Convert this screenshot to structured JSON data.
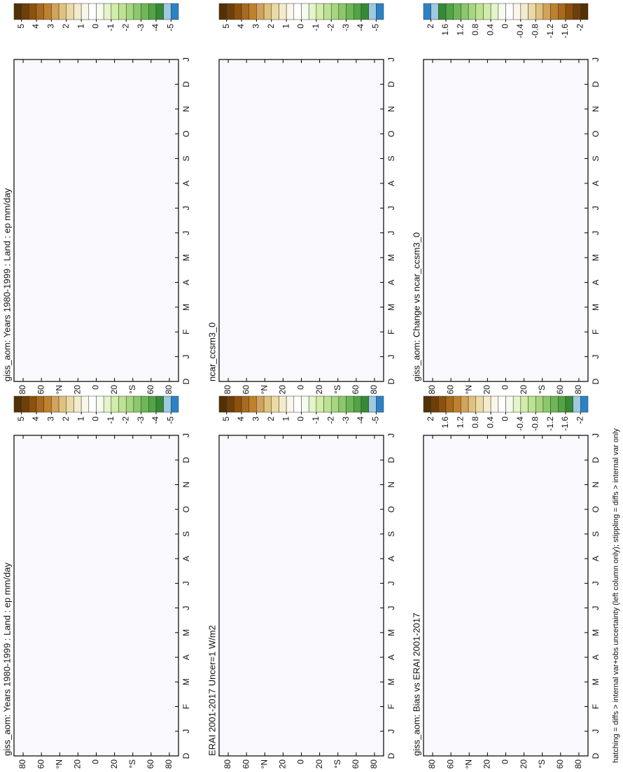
{
  "chart_data": [
    {
      "type": "heatmap",
      "title": "giss_aom: Years 1980-1999 : Land : ep mm/day",
      "categories": [
        "D",
        "J",
        "F",
        "M",
        "A",
        "M",
        "J",
        "J",
        "A",
        "S",
        "O",
        "N",
        "D",
        "J"
      ],
      "ylim": [
        -90,
        90
      ],
      "yticks": [
        80,
        60,
        {
          "value": 40,
          "label": "°N"
        },
        20,
        0,
        {
          "value": -20,
          "label": "20"
        },
        {
          "value": -40,
          "label": "°S"
        },
        {
          "value": -60,
          "label": "60"
        },
        {
          "value": -80,
          "label": "80"
        }
      ],
      "colorbar": {
        "ticks": [
          5,
          4,
          3,
          2,
          1,
          0,
          -1,
          -2,
          -3,
          -4,
          -5
        ],
        "colors": [
          "#543005",
          "#6e3f0a",
          "#8c510a",
          "#a86a1f",
          "#bf812d",
          "#d2a35c",
          "#dfc27d",
          "#eadaa6",
          "#f3ebcc",
          "#faf6e9",
          "#ffffff",
          "#f7fbef",
          "#e5f4c9",
          "#d2ecaa",
          "#bde293",
          "#a6d67f",
          "#8cc86b",
          "#6fb657",
          "#52a444",
          "#348a36",
          "#9ecae1",
          "#2b83c6"
        ]
      }
    },
    {
      "type": "heatmap",
      "title": "giss_aom: Years 1980-1999 : Land : ep mm/day",
      "categories": [
        "D",
        "J",
        "F",
        "M",
        "A",
        "M",
        "J",
        "J",
        "A",
        "S",
        "O",
        "N",
        "D",
        "J"
      ],
      "ylim": [
        -90,
        90
      ],
      "yticks": [
        80,
        60,
        {
          "value": 40,
          "label": "°N"
        },
        20,
        0,
        {
          "value": -20,
          "label": "20"
        },
        {
          "value": -40,
          "label": "°S"
        },
        {
          "value": -60,
          "label": "60"
        },
        {
          "value": -80,
          "label": "80"
        }
      ],
      "colorbar": {
        "ticks": [
          5,
          4,
          3,
          2,
          1,
          0,
          -1,
          -2,
          -3,
          -4,
          -5
        ],
        "colors": [
          "#543005",
          "#6e3f0a",
          "#8c510a",
          "#a86a1f",
          "#bf812d",
          "#d2a35c",
          "#dfc27d",
          "#eadaa6",
          "#f3ebcc",
          "#faf6e9",
          "#ffffff",
          "#f7fbef",
          "#e5f4c9",
          "#d2ecaa",
          "#bde293",
          "#a6d67f",
          "#8cc86b",
          "#6fb657",
          "#52a444",
          "#348a36",
          "#9ecae1",
          "#2b83c6"
        ]
      }
    },
    {
      "type": "heatmap",
      "title": "ERAI 2001-2017 Uncer=1 W/m2",
      "categories": [
        "D",
        "J",
        "F",
        "M",
        "A",
        "M",
        "J",
        "J",
        "A",
        "S",
        "O",
        "N",
        "D",
        "J"
      ],
      "ylim": [
        -90,
        90
      ],
      "yticks": [
        80,
        60,
        {
          "value": 40,
          "label": "°N"
        },
        20,
        0,
        {
          "value": -20,
          "label": "20"
        },
        {
          "value": -40,
          "label": "°S"
        },
        {
          "value": -60,
          "label": "60"
        },
        {
          "value": -80,
          "label": "80"
        }
      ],
      "colorbar": {
        "ticks": [
          5,
          4,
          3,
          2,
          1,
          0,
          -1,
          -2,
          -3,
          -4,
          -5
        ],
        "colors": [
          "#543005",
          "#6e3f0a",
          "#8c510a",
          "#a86a1f",
          "#bf812d",
          "#d2a35c",
          "#dfc27d",
          "#eadaa6",
          "#f3ebcc",
          "#faf6e9",
          "#ffffff",
          "#f7fbef",
          "#e5f4c9",
          "#d2ecaa",
          "#bde293",
          "#a6d67f",
          "#8cc86b",
          "#6fb657",
          "#52a444",
          "#348a36",
          "#9ecae1",
          "#2b83c6"
        ]
      }
    },
    {
      "type": "heatmap",
      "title": "ncar_ccsm3_0",
      "categories": [
        "D",
        "J",
        "F",
        "M",
        "A",
        "M",
        "J",
        "J",
        "A",
        "S",
        "O",
        "N",
        "D",
        "J"
      ],
      "ylim": [
        -90,
        90
      ],
      "yticks": [
        80,
        60,
        {
          "value": 40,
          "label": "°N"
        },
        20,
        0,
        {
          "value": -20,
          "label": "20"
        },
        {
          "value": -40,
          "label": "°S"
        },
        {
          "value": -60,
          "label": "60"
        },
        {
          "value": -80,
          "label": "80"
        }
      ],
      "colorbar": {
        "ticks": [
          5,
          4,
          3,
          2,
          1,
          0,
          -1,
          -2,
          -3,
          -4,
          -5
        ],
        "colors": [
          "#543005",
          "#6e3f0a",
          "#8c510a",
          "#a86a1f",
          "#bf812d",
          "#d2a35c",
          "#dfc27d",
          "#eadaa6",
          "#f3ebcc",
          "#faf6e9",
          "#ffffff",
          "#f7fbef",
          "#e5f4c9",
          "#d2ecaa",
          "#bde293",
          "#a6d67f",
          "#8cc86b",
          "#6fb657",
          "#52a444",
          "#348a36",
          "#9ecae1",
          "#2b83c6"
        ]
      }
    },
    {
      "type": "heatmap",
      "title": "giss_aom: Bias vs ERAI 2001-2017",
      "categories": [
        "D",
        "J",
        "F",
        "M",
        "A",
        "M",
        "J",
        "J",
        "A",
        "S",
        "O",
        "N",
        "D",
        "J"
      ],
      "ylim": [
        -90,
        90
      ],
      "yticks": [
        80,
        60,
        {
          "value": 40,
          "label": "°N"
        },
        20,
        0,
        {
          "value": -20,
          "label": "20"
        },
        {
          "value": -40,
          "label": "°S"
        },
        {
          "value": -60,
          "label": "60"
        },
        {
          "value": -80,
          "label": "80"
        }
      ],
      "colorbar": {
        "ticks": [
          2,
          1.6,
          1.2,
          0.8,
          0.4,
          0,
          -0.4,
          -0.8,
          -1.2,
          -1.6,
          -2
        ],
        "colors": [
          "#543005",
          "#6e3f0a",
          "#8c510a",
          "#a86a1f",
          "#bf812d",
          "#d2a35c",
          "#dfc27d",
          "#eadaa6",
          "#f3ebcc",
          "#faf6e9",
          "#ffffff",
          "#f7fbef",
          "#e5f4c9",
          "#d2ecaa",
          "#bde293",
          "#a6d67f",
          "#8cc86b",
          "#6fb657",
          "#52a444",
          "#348a36",
          "#9ecae1",
          "#2b83c6"
        ]
      }
    },
    {
      "type": "heatmap",
      "title": "giss_aom: Change vs ncar_ccsm3_0",
      "categories": [
        "D",
        "J",
        "F",
        "M",
        "A",
        "M",
        "J",
        "J",
        "A",
        "S",
        "O",
        "N",
        "D",
        "J"
      ],
      "ylim": [
        -90,
        90
      ],
      "yticks": [
        80,
        60,
        {
          "value": 40,
          "label": "°N"
        },
        20,
        0,
        {
          "value": -20,
          "label": "20"
        },
        {
          "value": -40,
          "label": "°S"
        },
        {
          "value": -60,
          "label": "60"
        },
        {
          "value": -80,
          "label": "80"
        }
      ],
      "colorbar": {
        "ticks": [
          2,
          1.6,
          1.2,
          0.8,
          0.4,
          0,
          -0.4,
          -0.8,
          -1.2,
          -1.6,
          -2
        ],
        "colors": [
          "#2b83c6",
          "#9ecae1",
          "#348a36",
          "#52a444",
          "#6fb657",
          "#8cc86b",
          "#a6d67f",
          "#bde293",
          "#d2ecaa",
          "#e5f4c9",
          "#f7fbef",
          "#ffffff",
          "#faf6e9",
          "#f3ebcc",
          "#eadaa6",
          "#dfc27d",
          "#d2a35c",
          "#bf812d",
          "#a86a1f",
          "#8c510a",
          "#6e3f0a",
          "#543005"
        ]
      }
    }
  ],
  "footnote": "hatching = diffs > internal var+obs uncertainty (left column only); stippling = diffs > internal var only"
}
